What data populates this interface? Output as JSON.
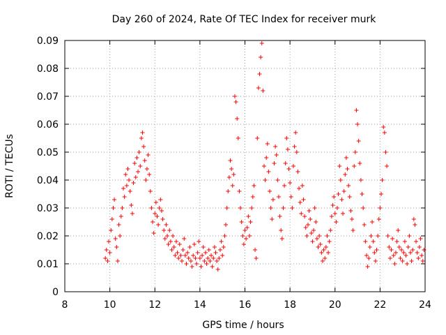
{
  "chart_data": {
    "type": "scatter",
    "title": "Day 260 of 2024, Rate Of TEC Index for receiver murk",
    "xlabel": "GPS time / hours",
    "ylabel": "ROTI / TECUs",
    "xlim": [
      8,
      24
    ],
    "ylim": [
      0,
      0.09
    ],
    "x_ticks": [
      8,
      10,
      12,
      14,
      16,
      18,
      20,
      22,
      24
    ],
    "y_ticks": [
      0,
      0.01,
      0.02,
      0.03,
      0.04,
      0.05,
      0.06,
      0.07,
      0.08,
      0.09
    ],
    "x_tick_labels": [
      "8",
      "10",
      "12",
      "14",
      "16",
      "18",
      "20",
      "22",
      "24"
    ],
    "y_tick_labels": [
      "0",
      "0.01",
      "0.02",
      "0.03",
      "0.04",
      "0.05",
      "0.06",
      "0.07",
      "0.08",
      "0.09"
    ],
    "grid": true,
    "marker": "plus",
    "color": "#ff0000",
    "series": [
      {
        "name": "",
        "points": [
          [
            9.8,
            0.012
          ],
          [
            9.85,
            0.015
          ],
          [
            9.9,
            0.011
          ],
          [
            9.95,
            0.018
          ],
          [
            10.0,
            0.014
          ],
          [
            10.05,
            0.022
          ],
          [
            10.1,
            0.026
          ],
          [
            10.15,
            0.03
          ],
          [
            10.2,
            0.033
          ],
          [
            10.25,
            0.019
          ],
          [
            10.3,
            0.016
          ],
          [
            10.35,
            0.011
          ],
          [
            10.4,
            0.024
          ],
          [
            10.45,
            0.02
          ],
          [
            10.5,
            0.027
          ],
          [
            10.55,
            0.03
          ],
          [
            10.6,
            0.037
          ],
          [
            10.65,
            0.034
          ],
          [
            10.7,
            0.042
          ],
          [
            10.75,
            0.038
          ],
          [
            10.8,
            0.044
          ],
          [
            10.85,
            0.04
          ],
          [
            10.9,
            0.036
          ],
          [
            10.95,
            0.031
          ],
          [
            11.0,
            0.028
          ],
          [
            11.05,
            0.039
          ],
          [
            11.1,
            0.046
          ],
          [
            11.15,
            0.041
          ],
          [
            11.2,
            0.048
          ],
          [
            11.25,
            0.043
          ],
          [
            11.3,
            0.05
          ],
          [
            11.35,
            0.045
          ],
          [
            11.4,
            0.055
          ],
          [
            11.45,
            0.057
          ],
          [
            11.5,
            0.052
          ],
          [
            11.55,
            0.047
          ],
          [
            11.6,
            0.04
          ],
          [
            11.65,
            0.044
          ],
          [
            11.7,
            0.049
          ],
          [
            11.75,
            0.042
          ],
          [
            11.8,
            0.036
          ],
          [
            11.85,
            0.03
          ],
          [
            11.9,
            0.025
          ],
          [
            11.95,
            0.021
          ],
          [
            12.0,
            0.028
          ],
          [
            12.05,
            0.032
          ],
          [
            12.1,
            0.027
          ],
          [
            12.15,
            0.024
          ],
          [
            12.2,
            0.03
          ],
          [
            12.25,
            0.033
          ],
          [
            12.3,
            0.029
          ],
          [
            12.35,
            0.026
          ],
          [
            12.4,
            0.022
          ],
          [
            12.45,
            0.019
          ],
          [
            12.5,
            0.024
          ],
          [
            12.55,
            0.02
          ],
          [
            12.6,
            0.017
          ],
          [
            12.65,
            0.022
          ],
          [
            12.7,
            0.018
          ],
          [
            12.75,
            0.015
          ],
          [
            12.8,
            0.02
          ],
          [
            12.85,
            0.016
          ],
          [
            12.9,
            0.013
          ],
          [
            12.95,
            0.018
          ],
          [
            13.0,
            0.014
          ],
          [
            13.05,
            0.012
          ],
          [
            13.1,
            0.017
          ],
          [
            13.15,
            0.013
          ],
          [
            13.2,
            0.011
          ],
          [
            13.25,
            0.015
          ],
          [
            13.3,
            0.019
          ],
          [
            13.35,
            0.013
          ],
          [
            13.4,
            0.01
          ],
          [
            13.45,
            0.014
          ],
          [
            13.5,
            0.012
          ],
          [
            13.55,
            0.016
          ],
          [
            13.6,
            0.011
          ],
          [
            13.65,
            0.009
          ],
          [
            13.7,
            0.013
          ],
          [
            13.75,
            0.017
          ],
          [
            13.8,
            0.012
          ],
          [
            13.85,
            0.01
          ],
          [
            13.9,
            0.014
          ],
          [
            13.95,
            0.018
          ],
          [
            14.0,
            0.012
          ],
          [
            14.05,
            0.009
          ],
          [
            14.1,
            0.013
          ],
          [
            14.15,
            0.016
          ],
          [
            14.2,
            0.011
          ],
          [
            14.25,
            0.014
          ],
          [
            14.3,
            0.01
          ],
          [
            14.35,
            0.012
          ],
          [
            14.4,
            0.015
          ],
          [
            14.45,
            0.011
          ],
          [
            14.5,
            0.013
          ],
          [
            14.55,
            0.009
          ],
          [
            14.6,
            0.012
          ],
          [
            14.65,
            0.016
          ],
          [
            14.7,
            0.014
          ],
          [
            14.75,
            0.011
          ],
          [
            14.8,
            0.008
          ],
          [
            14.85,
            0.012
          ],
          [
            14.9,
            0.015
          ],
          [
            14.95,
            0.018
          ],
          [
            15.0,
            0.013
          ],
          [
            15.05,
            0.016
          ],
          [
            15.1,
            0.02
          ],
          [
            15.15,
            0.024
          ],
          [
            15.2,
            0.03
          ],
          [
            15.25,
            0.036
          ],
          [
            15.3,
            0.041
          ],
          [
            15.35,
            0.047
          ],
          [
            15.4,
            0.044
          ],
          [
            15.45,
            0.038
          ],
          [
            15.5,
            0.042
          ],
          [
            15.55,
            0.07
          ],
          [
            15.6,
            0.068
          ],
          [
            15.65,
            0.062
          ],
          [
            15.7,
            0.055
          ],
          [
            15.75,
            0.036
          ],
          [
            15.8,
            0.03
          ],
          [
            15.85,
            0.025
          ],
          [
            15.9,
            0.02
          ],
          [
            15.95,
            0.017
          ],
          [
            16.0,
            0.022
          ],
          [
            16.05,
            0.019
          ],
          [
            16.1,
            0.023
          ],
          [
            16.15,
            0.027
          ],
          [
            16.2,
            0.02
          ],
          [
            16.25,
            0.025
          ],
          [
            16.3,
            0.03
          ],
          [
            16.35,
            0.034
          ],
          [
            16.4,
            0.038
          ],
          [
            16.45,
            0.015
          ],
          [
            16.5,
            0.012
          ],
          [
            16.55,
            0.055
          ],
          [
            16.6,
            0.073
          ],
          [
            16.65,
            0.078
          ],
          [
            16.7,
            0.084
          ],
          [
            16.75,
            0.089
          ],
          [
            16.8,
            0.072
          ],
          [
            16.85,
            0.045
          ],
          [
            16.9,
            0.04
          ],
          [
            16.95,
            0.048
          ],
          [
            17.0,
            0.053
          ],
          [
            17.05,
            0.043
          ],
          [
            17.1,
            0.036
          ],
          [
            17.15,
            0.03
          ],
          [
            17.2,
            0.026
          ],
          [
            17.25,
            0.033
          ],
          [
            17.3,
            0.046
          ],
          [
            17.35,
            0.052
          ],
          [
            17.4,
            0.049
          ],
          [
            17.45,
            0.04
          ],
          [
            17.5,
            0.034
          ],
          [
            17.55,
            0.027
          ],
          [
            17.6,
            0.022
          ],
          [
            17.65,
            0.019
          ],
          [
            17.7,
            0.03
          ],
          [
            17.75,
            0.038
          ],
          [
            17.8,
            0.046
          ],
          [
            17.85,
            0.055
          ],
          [
            17.9,
            0.051
          ],
          [
            17.95,
            0.044
          ],
          [
            18.0,
            0.039
          ],
          [
            18.05,
            0.034
          ],
          [
            18.1,
            0.03
          ],
          [
            18.15,
            0.045
          ],
          [
            18.2,
            0.052
          ],
          [
            18.25,
            0.057
          ],
          [
            18.3,
            0.05
          ],
          [
            18.35,
            0.043
          ],
          [
            18.4,
            0.037
          ],
          [
            18.45,
            0.032
          ],
          [
            18.5,
            0.028
          ],
          [
            18.55,
            0.038
          ],
          [
            18.6,
            0.033
          ],
          [
            18.65,
            0.027
          ],
          [
            18.7,
            0.023
          ],
          [
            18.75,
            0.02
          ],
          [
            18.8,
            0.024
          ],
          [
            18.85,
            0.029
          ],
          [
            18.9,
            0.026
          ],
          [
            18.95,
            0.021
          ],
          [
            19.0,
            0.018
          ],
          [
            19.05,
            0.022
          ],
          [
            19.1,
            0.03
          ],
          [
            19.15,
            0.025
          ],
          [
            19.2,
            0.019
          ],
          [
            19.25,
            0.016
          ],
          [
            19.3,
            0.02
          ],
          [
            19.35,
            0.017
          ],
          [
            19.4,
            0.014
          ],
          [
            19.45,
            0.011
          ],
          [
            19.5,
            0.015
          ],
          [
            19.55,
            0.012
          ],
          [
            19.6,
            0.016
          ],
          [
            19.65,
            0.02
          ],
          [
            19.7,
            0.014
          ],
          [
            19.75,
            0.018
          ],
          [
            19.8,
            0.022
          ],
          [
            19.85,
            0.027
          ],
          [
            19.9,
            0.031
          ],
          [
            19.95,
            0.034
          ],
          [
            20.0,
            0.028
          ],
          [
            20.05,
            0.025
          ],
          [
            20.1,
            0.03
          ],
          [
            20.15,
            0.035
          ],
          [
            20.2,
            0.045
          ],
          [
            20.25,
            0.04
          ],
          [
            20.3,
            0.033
          ],
          [
            20.35,
            0.028
          ],
          [
            20.4,
            0.036
          ],
          [
            20.45,
            0.042
          ],
          [
            20.5,
            0.048
          ],
          [
            20.55,
            0.044
          ],
          [
            20.6,
            0.038
          ],
          [
            20.65,
            0.034
          ],
          [
            20.7,
            0.029
          ],
          [
            20.75,
            0.026
          ],
          [
            20.8,
            0.022
          ],
          [
            20.85,
            0.045
          ],
          [
            20.9,
            0.05
          ],
          [
            20.95,
            0.065
          ],
          [
            21.0,
            0.06
          ],
          [
            21.05,
            0.054
          ],
          [
            21.1,
            0.046
          ],
          [
            21.15,
            0.04
          ],
          [
            21.2,
            0.035
          ],
          [
            21.25,
            0.03
          ],
          [
            21.3,
            0.024
          ],
          [
            21.35,
            0.018
          ],
          [
            21.4,
            0.013
          ],
          [
            21.45,
            0.009
          ],
          [
            21.5,
            0.012
          ],
          [
            21.55,
            0.016
          ],
          [
            21.6,
            0.02
          ],
          [
            21.65,
            0.025
          ],
          [
            21.7,
            0.018
          ],
          [
            21.75,
            0.014
          ],
          [
            21.8,
            0.011
          ],
          [
            21.85,
            0.015
          ],
          [
            21.9,
            0.02
          ],
          [
            21.95,
            0.026
          ],
          [
            22.0,
            0.03
          ],
          [
            22.05,
            0.035
          ],
          [
            22.1,
            0.04
          ],
          [
            22.15,
            0.059
          ],
          [
            22.2,
            0.057
          ],
          [
            22.25,
            0.05
          ],
          [
            22.3,
            0.045
          ],
          [
            22.35,
            0.02
          ],
          [
            22.4,
            0.016
          ],
          [
            22.45,
            0.012
          ],
          [
            22.5,
            0.015
          ],
          [
            22.55,
            0.019
          ],
          [
            22.6,
            0.013
          ],
          [
            22.65,
            0.01
          ],
          [
            22.7,
            0.014
          ],
          [
            22.75,
            0.018
          ],
          [
            22.8,
            0.022
          ],
          [
            22.85,
            0.016
          ],
          [
            22.9,
            0.012
          ],
          [
            22.95,
            0.015
          ],
          [
            23.0,
            0.011
          ],
          [
            23.05,
            0.014
          ],
          [
            23.1,
            0.018
          ],
          [
            23.15,
            0.013
          ],
          [
            23.2,
            0.01
          ],
          [
            23.25,
            0.016
          ],
          [
            23.3,
            0.02
          ],
          [
            23.35,
            0.014
          ],
          [
            23.4,
            0.011
          ],
          [
            23.45,
            0.015
          ],
          [
            23.5,
            0.026
          ],
          [
            23.55,
            0.024
          ],
          [
            23.6,
            0.018
          ],
          [
            23.65,
            0.014
          ],
          [
            23.7,
            0.012
          ],
          [
            23.75,
            0.016
          ],
          [
            23.8,
            0.019
          ],
          [
            23.85,
            0.013
          ],
          [
            23.9,
            0.011
          ],
          [
            23.95,
            0.015
          ]
        ]
      }
    ]
  }
}
